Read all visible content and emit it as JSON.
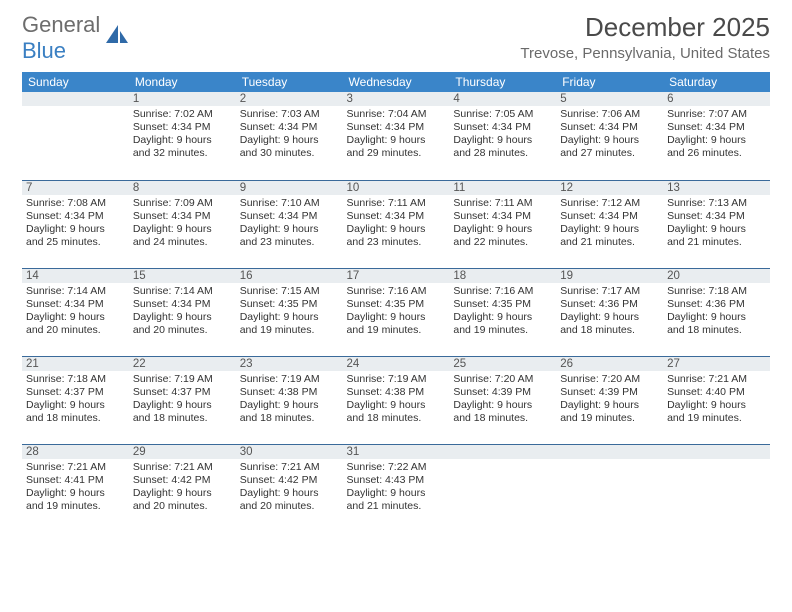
{
  "logo": {
    "part1": "General",
    "part2": "Blue"
  },
  "title": "December 2025",
  "location": "Trevose, Pennsylvania, United States",
  "colors": {
    "header_bg": "#3a85c9",
    "header_text": "#ffffff",
    "daynum_bg": "#e9edf0",
    "daynum_border": "#3a6a9a",
    "logo_gray": "#6d6d6d",
    "logo_blue": "#3a7fc2"
  },
  "weekdays": [
    "Sunday",
    "Monday",
    "Tuesday",
    "Wednesday",
    "Thursday",
    "Friday",
    "Saturday"
  ],
  "weeks": [
    [
      {
        "n": "",
        "lines": []
      },
      {
        "n": "1",
        "lines": [
          "Sunrise: 7:02 AM",
          "Sunset: 4:34 PM",
          "Daylight: 9 hours",
          "and 32 minutes."
        ]
      },
      {
        "n": "2",
        "lines": [
          "Sunrise: 7:03 AM",
          "Sunset: 4:34 PM",
          "Daylight: 9 hours",
          "and 30 minutes."
        ]
      },
      {
        "n": "3",
        "lines": [
          "Sunrise: 7:04 AM",
          "Sunset: 4:34 PM",
          "Daylight: 9 hours",
          "and 29 minutes."
        ]
      },
      {
        "n": "4",
        "lines": [
          "Sunrise: 7:05 AM",
          "Sunset: 4:34 PM",
          "Daylight: 9 hours",
          "and 28 minutes."
        ]
      },
      {
        "n": "5",
        "lines": [
          "Sunrise: 7:06 AM",
          "Sunset: 4:34 PM",
          "Daylight: 9 hours",
          "and 27 minutes."
        ]
      },
      {
        "n": "6",
        "lines": [
          "Sunrise: 7:07 AM",
          "Sunset: 4:34 PM",
          "Daylight: 9 hours",
          "and 26 minutes."
        ]
      }
    ],
    [
      {
        "n": "7",
        "lines": [
          "Sunrise: 7:08 AM",
          "Sunset: 4:34 PM",
          "Daylight: 9 hours",
          "and 25 minutes."
        ]
      },
      {
        "n": "8",
        "lines": [
          "Sunrise: 7:09 AM",
          "Sunset: 4:34 PM",
          "Daylight: 9 hours",
          "and 24 minutes."
        ]
      },
      {
        "n": "9",
        "lines": [
          "Sunrise: 7:10 AM",
          "Sunset: 4:34 PM",
          "Daylight: 9 hours",
          "and 23 minutes."
        ]
      },
      {
        "n": "10",
        "lines": [
          "Sunrise: 7:11 AM",
          "Sunset: 4:34 PM",
          "Daylight: 9 hours",
          "and 23 minutes."
        ]
      },
      {
        "n": "11",
        "lines": [
          "Sunrise: 7:11 AM",
          "Sunset: 4:34 PM",
          "Daylight: 9 hours",
          "and 22 minutes."
        ]
      },
      {
        "n": "12",
        "lines": [
          "Sunrise: 7:12 AM",
          "Sunset: 4:34 PM",
          "Daylight: 9 hours",
          "and 21 minutes."
        ]
      },
      {
        "n": "13",
        "lines": [
          "Sunrise: 7:13 AM",
          "Sunset: 4:34 PM",
          "Daylight: 9 hours",
          "and 21 minutes."
        ]
      }
    ],
    [
      {
        "n": "14",
        "lines": [
          "Sunrise: 7:14 AM",
          "Sunset: 4:34 PM",
          "Daylight: 9 hours",
          "and 20 minutes."
        ]
      },
      {
        "n": "15",
        "lines": [
          "Sunrise: 7:14 AM",
          "Sunset: 4:34 PM",
          "Daylight: 9 hours",
          "and 20 minutes."
        ]
      },
      {
        "n": "16",
        "lines": [
          "Sunrise: 7:15 AM",
          "Sunset: 4:35 PM",
          "Daylight: 9 hours",
          "and 19 minutes."
        ]
      },
      {
        "n": "17",
        "lines": [
          "Sunrise: 7:16 AM",
          "Sunset: 4:35 PM",
          "Daylight: 9 hours",
          "and 19 minutes."
        ]
      },
      {
        "n": "18",
        "lines": [
          "Sunrise: 7:16 AM",
          "Sunset: 4:35 PM",
          "Daylight: 9 hours",
          "and 19 minutes."
        ]
      },
      {
        "n": "19",
        "lines": [
          "Sunrise: 7:17 AM",
          "Sunset: 4:36 PM",
          "Daylight: 9 hours",
          "and 18 minutes."
        ]
      },
      {
        "n": "20",
        "lines": [
          "Sunrise: 7:18 AM",
          "Sunset: 4:36 PM",
          "Daylight: 9 hours",
          "and 18 minutes."
        ]
      }
    ],
    [
      {
        "n": "21",
        "lines": [
          "Sunrise: 7:18 AM",
          "Sunset: 4:37 PM",
          "Daylight: 9 hours",
          "and 18 minutes."
        ]
      },
      {
        "n": "22",
        "lines": [
          "Sunrise: 7:19 AM",
          "Sunset: 4:37 PM",
          "Daylight: 9 hours",
          "and 18 minutes."
        ]
      },
      {
        "n": "23",
        "lines": [
          "Sunrise: 7:19 AM",
          "Sunset: 4:38 PM",
          "Daylight: 9 hours",
          "and 18 minutes."
        ]
      },
      {
        "n": "24",
        "lines": [
          "Sunrise: 7:19 AM",
          "Sunset: 4:38 PM",
          "Daylight: 9 hours",
          "and 18 minutes."
        ]
      },
      {
        "n": "25",
        "lines": [
          "Sunrise: 7:20 AM",
          "Sunset: 4:39 PM",
          "Daylight: 9 hours",
          "and 18 minutes."
        ]
      },
      {
        "n": "26",
        "lines": [
          "Sunrise: 7:20 AM",
          "Sunset: 4:39 PM",
          "Daylight: 9 hours",
          "and 19 minutes."
        ]
      },
      {
        "n": "27",
        "lines": [
          "Sunrise: 7:21 AM",
          "Sunset: 4:40 PM",
          "Daylight: 9 hours",
          "and 19 minutes."
        ]
      }
    ],
    [
      {
        "n": "28",
        "lines": [
          "Sunrise: 7:21 AM",
          "Sunset: 4:41 PM",
          "Daylight: 9 hours",
          "and 19 minutes."
        ]
      },
      {
        "n": "29",
        "lines": [
          "Sunrise: 7:21 AM",
          "Sunset: 4:42 PM",
          "Daylight: 9 hours",
          "and 20 minutes."
        ]
      },
      {
        "n": "30",
        "lines": [
          "Sunrise: 7:21 AM",
          "Sunset: 4:42 PM",
          "Daylight: 9 hours",
          "and 20 minutes."
        ]
      },
      {
        "n": "31",
        "lines": [
          "Sunrise: 7:22 AM",
          "Sunset: 4:43 PM",
          "Daylight: 9 hours",
          "and 21 minutes."
        ]
      },
      {
        "n": "",
        "lines": []
      },
      {
        "n": "",
        "lines": []
      },
      {
        "n": "",
        "lines": []
      }
    ]
  ]
}
